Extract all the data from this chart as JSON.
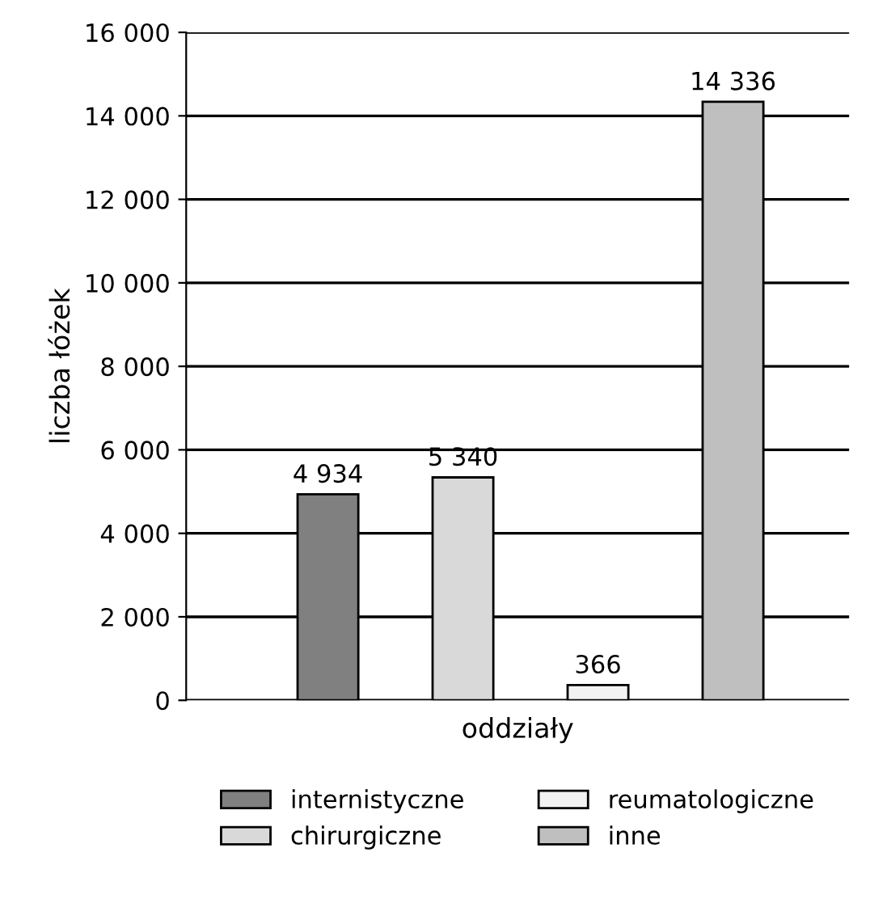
{
  "chart_data": {
    "type": "bar",
    "xlabel": "oddziały",
    "ylabel": "liczba łóżek",
    "categories": [
      null,
      null,
      null,
      null
    ],
    "series": [
      {
        "name": "internistyczne",
        "color": "#808080",
        "values": [
          4934,
          null,
          null,
          null
        ],
        "value_labels": [
          "4 934",
          null,
          null,
          null
        ]
      },
      {
        "name": "chirurgiczne",
        "color": "#d9d9d9",
        "values": [
          null,
          5340,
          null,
          null
        ],
        "value_labels": [
          null,
          "5 340",
          null,
          null
        ]
      },
      {
        "name": "reumatologiczne",
        "color": "#f2f2f2",
        "values": [
          null,
          null,
          366,
          null
        ],
        "value_labels": [
          null,
          null,
          "366",
          null
        ]
      },
      {
        "name": "inne",
        "color": "#bfbfbf",
        "values": [
          null,
          null,
          null,
          14336
        ],
        "value_labels": [
          null,
          null,
          null,
          "14 336"
        ]
      }
    ],
    "ylim": [
      0,
      16000
    ],
    "yticks": [
      {
        "value": 0,
        "label": "0"
      },
      {
        "value": 2000,
        "label": "2 000"
      },
      {
        "value": 4000,
        "label": "4 000"
      },
      {
        "value": 6000,
        "label": "6 000"
      },
      {
        "value": 8000,
        "label": "8 000"
      },
      {
        "value": 10000,
        "label": "10 000"
      },
      {
        "value": 12000,
        "label": "12 000"
      },
      {
        "value": 14000,
        "label": "14 000"
      },
      {
        "value": 16000,
        "label": "16 000"
      }
    ],
    "grid": "y",
    "legend": "bottom"
  }
}
